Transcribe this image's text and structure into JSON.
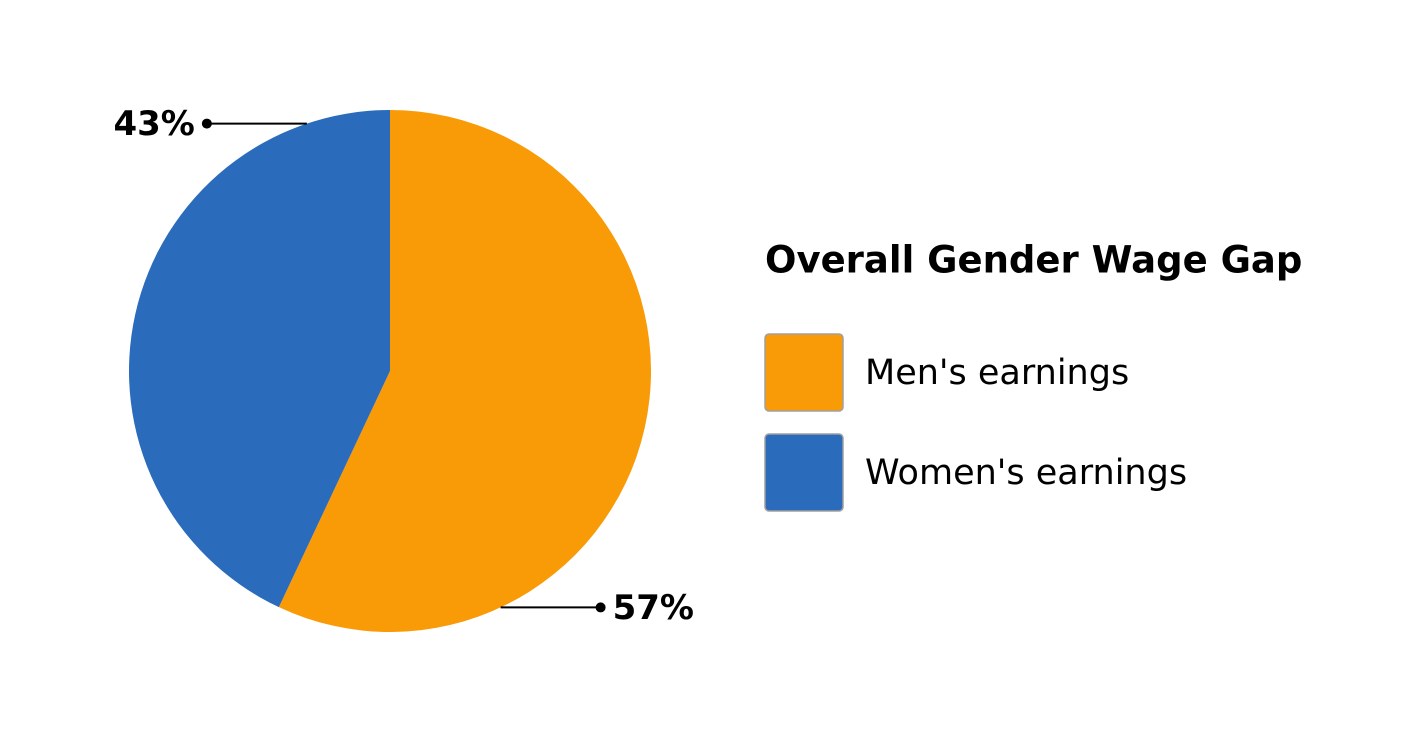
{
  "chart_data": {
    "type": "pie",
    "title": "Overall Gender Wage Gap",
    "categories": [
      "Men's earnings",
      "Women's earnings"
    ],
    "values": [
      57,
      43
    ],
    "value_labels": [
      "57%",
      "43%"
    ],
    "colors": [
      "#f99a07",
      "#2a6bbb"
    ]
  }
}
